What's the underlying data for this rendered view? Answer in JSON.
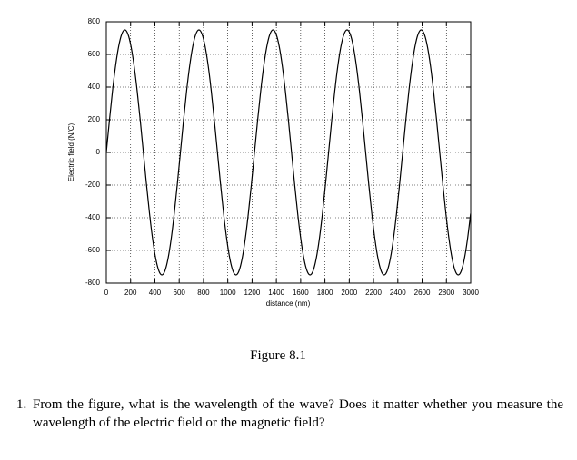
{
  "chart_data": {
    "type": "line",
    "x_label": "distance (nm)",
    "y_label": "Electric field (N/C)",
    "xlim": [
      0,
      3000
    ],
    "ylim": [
      -800,
      800
    ],
    "xticks": [
      0,
      200,
      400,
      600,
      800,
      1000,
      1200,
      1400,
      1600,
      1800,
      2000,
      2200,
      2400,
      2600,
      2800,
      3000
    ],
    "yticks": [
      -800,
      -600,
      -400,
      -200,
      0,
      200,
      400,
      600,
      800
    ],
    "grid": true,
    "x": [
      0,
      25.4,
      50.8,
      76.3,
      101.7,
      127.1,
      152.5,
      177.9,
      203.3,
      228.8,
      254.2,
      279.6,
      305,
      330.4,
      355.8,
      381.3,
      406.7,
      432.1,
      457.5,
      482.9,
      508.3,
      533.8,
      559.2,
      584.6,
      610,
      635.4,
      660.8,
      686.3,
      711.7,
      737.1,
      762.5,
      787.9,
      813.3,
      838.8,
      864.2,
      889.6,
      915,
      940.4,
      965.8,
      991.3,
      1016.7,
      1042.1,
      1067.5,
      1092.9,
      1118.3,
      1143.8,
      1169.2,
      1194.6,
      1220,
      1245.4,
      1270.8,
      1296.3,
      1321.7,
      1347.1,
      1372.5,
      1397.9,
      1423.3,
      1448.8,
      1474.2,
      1499.6,
      1525,
      1550.4,
      1575.8,
      1601.3,
      1626.7,
      1652.1,
      1677.5,
      1702.9,
      1728.3,
      1753.8,
      1779.2,
      1804.6,
      1830,
      1855.4,
      1880.8,
      1906.3,
      1931.7,
      1957.1,
      1982.5,
      2007.9,
      2033.3,
      2058.8,
      2084.2,
      2109.6,
      2135,
      2160.4,
      2185.8,
      2211.3,
      2236.7,
      2262.1,
      2287.5,
      2312.9,
      2338.3,
      2363.8,
      2389.2,
      2414.6,
      2440,
      2465.4,
      2490.8,
      2516.3,
      2541.7,
      2567.1,
      2592.5,
      2617.9,
      2643.3,
      2668.8,
      2694.2,
      2719.6,
      2745,
      2770.4,
      2795.8,
      2821.3,
      2846.7,
      2872.1,
      2897.5,
      2922.9,
      2948.3,
      2973.8,
      2999.2
    ],
    "series": [
      {
        "color": "#000000",
        "values": [
          0,
          194.1,
          375,
          530.3,
          649.5,
          724.4,
          750,
          724.4,
          649.5,
          530.3,
          375,
          194.1,
          0,
          -194.1,
          -375,
          -530.3,
          -649.5,
          -724.4,
          -750,
          -724.4,
          -649.5,
          -530.3,
          -375,
          -194.1,
          0,
          194.1,
          375,
          530.3,
          649.5,
          724.4,
          750,
          724.4,
          649.5,
          530.3,
          375,
          194.1,
          0,
          -194.1,
          -375,
          -530.3,
          -649.5,
          -724.4,
          -750,
          -724.4,
          -649.5,
          -530.3,
          -375,
          -194.1,
          0,
          194.1,
          375,
          530.3,
          649.5,
          724.4,
          750,
          724.4,
          649.5,
          530.3,
          375,
          194.1,
          0,
          -194.1,
          -375,
          -530.3,
          -649.5,
          -724.4,
          -750,
          -724.4,
          -649.5,
          -530.3,
          -375,
          -194.1,
          0,
          194.1,
          375,
          530.3,
          649.5,
          724.4,
          750,
          724.4,
          649.5,
          530.3,
          375,
          194.1,
          0,
          -194.1,
          -375,
          -530.3,
          -649.5,
          -724.4,
          -750,
          -724.4,
          -649.5,
          -530.3,
          -375,
          -194.1,
          0,
          194.1,
          375,
          530.3,
          649.5,
          724.4,
          750,
          724.4,
          649.5,
          530.3,
          375,
          194.1,
          0,
          -194.1,
          -375,
          -530.3,
          -649.5,
          -724.4,
          -750,
          -724.4,
          -649.5,
          -530.3,
          -375
        ]
      }
    ]
  },
  "caption": "Figure 8.1",
  "questions": [
    {
      "number": "1.",
      "text": "From the figure, what is the wavelength of the wave? Does it matter whether you measure the wavelength of the electric field or the magnetic field?"
    }
  ]
}
